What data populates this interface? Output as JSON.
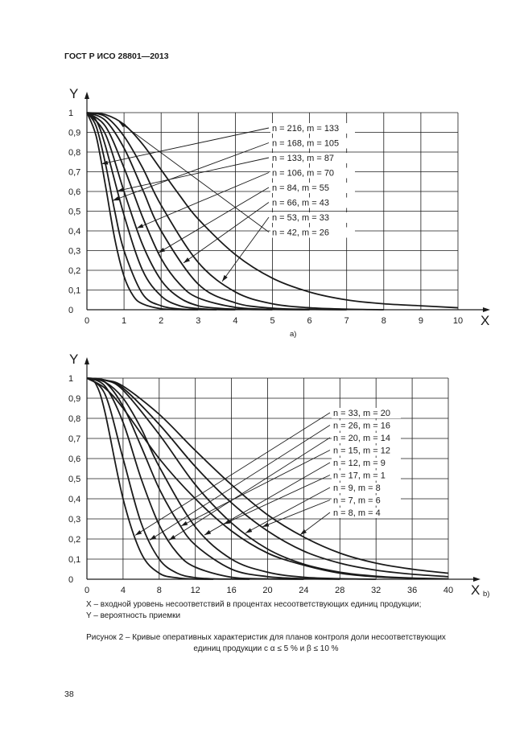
{
  "page": {
    "header": "ГОСТ Р ИСО 28801—2013",
    "page_number": "38",
    "legend_x": "X – входной уровень несоответствий в процентах несоответствующих единиц продукции;",
    "legend_y": "Y – вероятность приемки",
    "caption_line1": "Рисунок 2 – Кривые оперативных характеристик для планов контроля доли несоответствующих",
    "caption_line2": "единиц продукции с α ≤ 5 % и β ≤ 10 %"
  },
  "colors": {
    "ink": "#1a1a1a",
    "background": "#ffffff"
  },
  "chart_data": [
    {
      "type": "line",
      "panel_label": "a)",
      "xlabel": "X",
      "ylabel": "Y",
      "xlim": [
        0,
        10
      ],
      "ylim": [
        0,
        1
      ],
      "x_ticks": [
        "0",
        "1",
        "2",
        "3",
        "4",
        "5",
        "6",
        "7",
        "8",
        "9",
        "10"
      ],
      "y_ticks": [
        "0",
        "0,1",
        "0,2",
        "0,3",
        "0,4",
        "0,5",
        "0,6",
        "0,7",
        "0,8",
        "0,9",
        "1"
      ],
      "grid": true,
      "series": [
        {
          "name": "n = 216, m = 133",
          "x": [
            0,
            0.25,
            0.5,
            0.75,
            1,
            1.25,
            1.5,
            2,
            2.5,
            3
          ],
          "y": [
            1,
            0.88,
            0.63,
            0.36,
            0.17,
            0.07,
            0.03,
            0.005,
            0.001,
            0
          ]
        },
        {
          "name": "n = 168, m = 105",
          "x": [
            0,
            0.25,
            0.5,
            0.75,
            1,
            1.5,
            2,
            2.5,
            3,
            3.5
          ],
          "y": [
            1,
            0.93,
            0.74,
            0.5,
            0.3,
            0.08,
            0.02,
            0.004,
            0.001,
            0
          ]
        },
        {
          "name": "n = 133, m = 87",
          "x": [
            0,
            0.25,
            0.5,
            1,
            1.5,
            2,
            2.5,
            3,
            3.5,
            4
          ],
          "y": [
            1,
            0.96,
            0.83,
            0.48,
            0.2,
            0.07,
            0.02,
            0.006,
            0.001,
            0
          ]
        },
        {
          "name": "n = 106, m = 70",
          "x": [
            0,
            0.5,
            1,
            1.5,
            2,
            2.5,
            3,
            3.5,
            4,
            5
          ],
          "y": [
            1,
            0.89,
            0.6,
            0.33,
            0.15,
            0.06,
            0.02,
            0.008,
            0.003,
            0
          ]
        },
        {
          "name": "n = 84, m = 55",
          "x": [
            0,
            0.5,
            1,
            1.5,
            2,
            2.5,
            3,
            4,
            5,
            6
          ],
          "y": [
            1,
            0.93,
            0.72,
            0.47,
            0.26,
            0.13,
            0.06,
            0.012,
            0.002,
            0
          ]
        },
        {
          "name": "n = 66, m = 43",
          "x": [
            0,
            0.5,
            1,
            1.5,
            2,
            3,
            4,
            5,
            6,
            7
          ],
          "y": [
            1,
            0.96,
            0.82,
            0.61,
            0.4,
            0.13,
            0.035,
            0.008,
            0.002,
            0
          ]
        },
        {
          "name": "n = 53, m = 33",
          "x": [
            0,
            0.5,
            1,
            1.5,
            2,
            3,
            4,
            5,
            6,
            7,
            8
          ],
          "y": [
            1,
            0.98,
            0.88,
            0.72,
            0.53,
            0.24,
            0.09,
            0.03,
            0.01,
            0.003,
            0
          ]
        },
        {
          "name": "n = 42, m = 26",
          "x": [
            0,
            0.5,
            1,
            1.5,
            2,
            2.5,
            3,
            4,
            5,
            6,
            7,
            8,
            9,
            10
          ],
          "y": [
            1,
            0.99,
            0.94,
            0.84,
            0.71,
            0.58,
            0.46,
            0.28,
            0.16,
            0.09,
            0.05,
            0.03,
            0.02,
            0.01
          ]
        }
      ]
    },
    {
      "type": "line",
      "panel_label": "b)",
      "xlabel": "X",
      "ylabel": "Y",
      "xlim": [
        0,
        40
      ],
      "ylim": [
        0,
        1
      ],
      "x_ticks": [
        "0",
        "4",
        "8",
        "12",
        "16",
        "20",
        "24",
        "28",
        "32",
        "36",
        "40"
      ],
      "y_ticks": [
        "0",
        "0,1",
        "0,2",
        "0,3",
        "0,4",
        "0,5",
        "0,6",
        "0,7",
        "0,8",
        "0,9",
        "1"
      ],
      "grid": true,
      "series": [
        {
          "name": "n = 33, m = 20",
          "x": [
            0,
            1,
            2,
            4,
            6,
            8,
            10,
            12,
            14
          ],
          "y": [
            1,
            0.97,
            0.83,
            0.4,
            0.13,
            0.03,
            0.007,
            0.001,
            0
          ]
        },
        {
          "name": "n = 26, m = 16",
          "x": [
            0,
            2,
            4,
            6,
            8,
            10,
            12,
            14,
            16,
            18
          ],
          "y": [
            1,
            0.92,
            0.6,
            0.28,
            0.1,
            0.03,
            0.008,
            0.002,
            0.001,
            0
          ]
        },
        {
          "name": "n = 20, m = 14",
          "x": [
            0,
            2,
            4,
            6,
            8,
            10,
            12,
            16,
            20,
            24
          ],
          "y": [
            1,
            0.96,
            0.78,
            0.5,
            0.27,
            0.13,
            0.06,
            0.01,
            0.002,
            0
          ]
        },
        {
          "name": "n = 15, m = 12",
          "x": [
            0,
            2,
            4,
            6,
            8,
            10,
            12,
            16,
            20,
            24,
            28
          ],
          "y": [
            1,
            0.98,
            0.86,
            0.66,
            0.45,
            0.29,
            0.17,
            0.05,
            0.013,
            0.003,
            0
          ]
        },
        {
          "name": "n = 12, m = 9",
          "x": [
            0,
            2,
            4,
            6,
            8,
            12,
            16,
            20,
            24,
            28,
            32
          ],
          "y": [
            1,
            0.98,
            0.9,
            0.75,
            0.56,
            0.26,
            0.1,
            0.035,
            0.01,
            0.003,
            0
          ]
        },
        {
          "name": "n = 17, m = 1",
          "x": [
            0,
            2,
            4,
            8,
            12,
            16,
            20,
            24,
            28,
            32,
            36
          ],
          "y": [
            1,
            0.95,
            0.85,
            0.6,
            0.4,
            0.24,
            0.13,
            0.07,
            0.03,
            0.012,
            0.005
          ]
        },
        {
          "name": "n = 9, m = 8",
          "x": [
            0,
            2,
            4,
            8,
            12,
            16,
            20,
            24,
            28,
            32,
            36,
            40
          ],
          "y": [
            1,
            0.99,
            0.94,
            0.72,
            0.47,
            0.28,
            0.15,
            0.075,
            0.035,
            0.015,
            0.006,
            0.002
          ]
        },
        {
          "name": "n = 7, m = 6",
          "x": [
            0,
            2,
            4,
            8,
            12,
            16,
            20,
            24,
            28,
            32,
            36,
            40
          ],
          "y": [
            1,
            0.99,
            0.95,
            0.77,
            0.56,
            0.38,
            0.24,
            0.14,
            0.08,
            0.045,
            0.025,
            0.013
          ]
        },
        {
          "name": "n = 8, m = 4",
          "x": [
            0,
            2,
            4,
            8,
            12,
            16,
            20,
            24,
            28,
            32,
            36,
            40
          ],
          "y": [
            1,
            0.99,
            0.96,
            0.82,
            0.64,
            0.47,
            0.32,
            0.21,
            0.13,
            0.08,
            0.05,
            0.03
          ]
        }
      ]
    }
  ]
}
